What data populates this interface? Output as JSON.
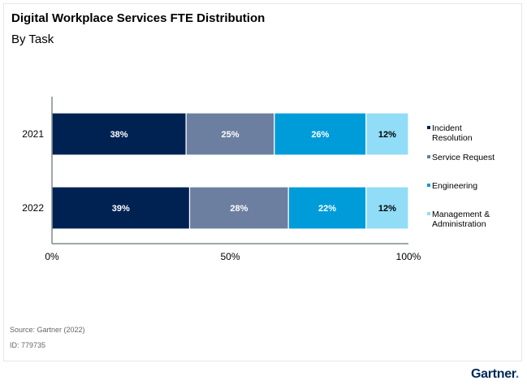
{
  "header": {
    "title": "Digital Workplace Services FTE Distribution",
    "subtitle": "By Task"
  },
  "footer": {
    "source": "Source: Gartner (2022)",
    "id": "ID: 779735",
    "logo": "Gartner",
    "logo_dot": "."
  },
  "chart_data": {
    "type": "bar",
    "orientation": "horizontal",
    "stacked": "percent",
    "title": "Digital Workplace Services FTE Distribution",
    "subtitle": "By Task",
    "categories": [
      "2021",
      "2022"
    ],
    "series": [
      {
        "name": "Incident Resolution",
        "legend_lines": [
          "Incident",
          "Resolution"
        ],
        "values": [
          38,
          39
        ],
        "labels": [
          "38%",
          "39%"
        ],
        "color": "#002253",
        "label_color": "#ffffff"
      },
      {
        "name": "Service Request",
        "legend_lines": [
          "Service Request"
        ],
        "values": [
          25,
          28
        ],
        "labels": [
          "25%",
          "28%"
        ],
        "color": "#6c7fa0",
        "label_color": "#ffffff"
      },
      {
        "name": "Engineering",
        "legend_lines": [
          "Engineering"
        ],
        "values": [
          26,
          22
        ],
        "labels": [
          "26%",
          "22%"
        ],
        "color": "#009cd9",
        "label_color": "#ffffff"
      },
      {
        "name": "Management & Administration",
        "legend_lines": [
          "Management &",
          "Administration"
        ],
        "values": [
          12,
          12
        ],
        "labels": [
          "12%",
          "12%"
        ],
        "color": "#91dcf7",
        "label_color": "#000000"
      }
    ],
    "xaxis": {
      "ticks": [
        0,
        50,
        100
      ],
      "tick_labels": [
        "0%",
        "50%",
        "100%"
      ],
      "range": [
        0,
        100
      ]
    },
    "xlabel": "",
    "ylabel": "",
    "grid": false,
    "legend_position": "right"
  }
}
